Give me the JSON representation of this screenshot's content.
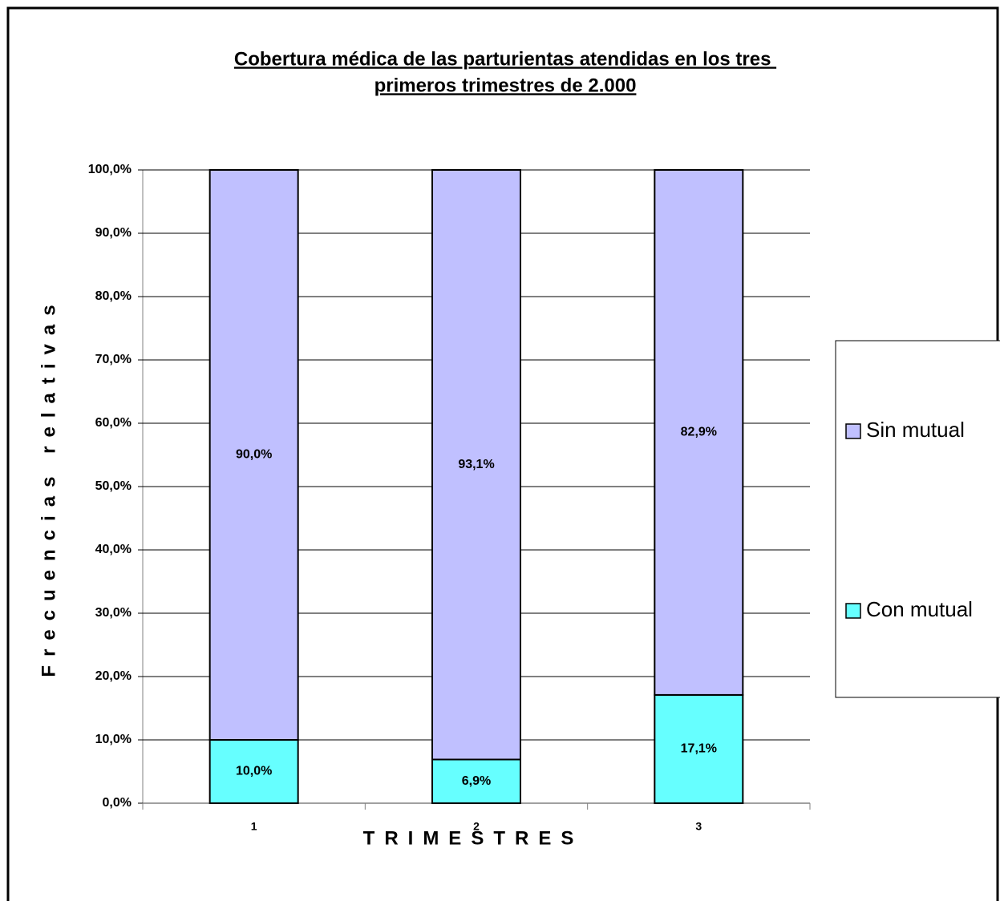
{
  "chart_data": {
    "type": "stacked_bar",
    "title": [
      "Cobertura médica de las parturientas atendidas en los tres ",
      "primeros trimestres de 2.000"
    ],
    "x_label": "TRIMESTRES",
    "y_label": "Frecuencias relativas",
    "categories": [
      "1",
      "2",
      "3"
    ],
    "series": [
      {
        "name": "Con mutual",
        "color": "#66ffff",
        "values": [
          10.0,
          6.9,
          17.1
        ],
        "value_labels": [
          "10,0%",
          "6,9%",
          "17,1%"
        ]
      },
      {
        "name": "Sin mutual",
        "color": "#c0c0ff",
        "values": [
          90.0,
          93.1,
          82.9
        ],
        "value_labels": [
          "90,0%",
          "93,1%",
          "82,9%"
        ]
      }
    ],
    "ylim": [
      0,
      100
    ],
    "yticks": [
      {
        "value": 0,
        "label": "0,0%"
      },
      {
        "value": 10,
        "label": "10,0%"
      },
      {
        "value": 20,
        "label": "20,0%"
      },
      {
        "value": 30,
        "label": "30,0%"
      },
      {
        "value": 40,
        "label": "40,0%"
      },
      {
        "value": 50,
        "label": "50,0%"
      },
      {
        "value": 60,
        "label": "60,0%"
      },
      {
        "value": 70,
        "label": "70,0%"
      },
      {
        "value": 80,
        "label": "80,0%"
      },
      {
        "value": 90,
        "label": "90,0%"
      },
      {
        "value": 100,
        "label": "100,0%"
      }
    ],
    "grid": true,
    "legend": "right"
  }
}
